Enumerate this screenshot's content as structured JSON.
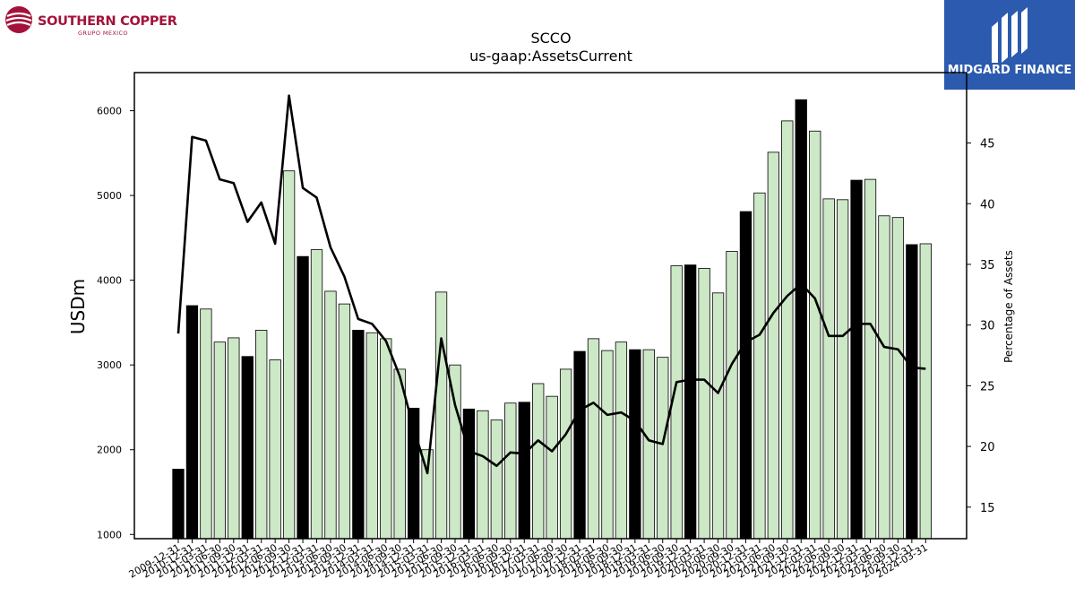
{
  "brand_left": {
    "name": "SOUTHERN COPPER",
    "sub": "GRUPO MEXICO"
  },
  "brand_right": {
    "name": "MIDGARD FINANCE"
  },
  "chart_data": {
    "type": "bar",
    "title": "SCCO",
    "subtitle": "us-gaap:AssetsCurrent",
    "ylabel": "USDm",
    "y2label": "Percentage of Assets",
    "ylim": [
      950,
      6450
    ],
    "y2lim": [
      12.4,
      50.8
    ],
    "yticks": [
      1000,
      2000,
      3000,
      4000,
      5000,
      6000
    ],
    "y2ticks": [
      15,
      20,
      25,
      30,
      35,
      40,
      45
    ],
    "colors": {
      "annual_bar": "#000000",
      "quarter_bar": "#cde8c6",
      "line": "#000000"
    },
    "categories": [
      "2009-12-31",
      "2010-12-31",
      "2011-03-31",
      "2011-06-30",
      "2011-09-30",
      "2011-12-31",
      "2012-03-31",
      "2012-06-30",
      "2012-09-30",
      "2012-12-31",
      "2013-03-31",
      "2013-06-30",
      "2013-09-30",
      "2013-12-31",
      "2014-03-31",
      "2014-06-30",
      "2014-09-30",
      "2014-12-31",
      "2015-03-31",
      "2015-06-30",
      "2015-09-30",
      "2015-12-31",
      "2016-03-31",
      "2016-06-30",
      "2016-09-30",
      "2016-12-31",
      "2017-03-31",
      "2017-06-30",
      "2017-09-30",
      "2017-12-31",
      "2018-03-31",
      "2018-06-30",
      "2018-09-30",
      "2018-12-31",
      "2019-03-31",
      "2019-06-30",
      "2019-09-30",
      "2019-12-31",
      "2020-03-31",
      "2020-06-30",
      "2020-09-30",
      "2020-12-31",
      "2021-03-31",
      "2021-06-30",
      "2021-09-30",
      "2021-12-31",
      "2022-03-31",
      "2022-06-30",
      "2022-09-30",
      "2022-12-31",
      "2023-03-31",
      "2023-06-30",
      "2023-09-30",
      "2023-12-31",
      "2024-03-31"
    ],
    "annual": [
      true,
      true,
      false,
      false,
      false,
      true,
      false,
      false,
      false,
      true,
      false,
      false,
      false,
      true,
      false,
      false,
      false,
      true,
      false,
      false,
      false,
      true,
      false,
      false,
      false,
      true,
      false,
      false,
      false,
      true,
      false,
      false,
      false,
      true,
      false,
      false,
      false,
      true,
      false,
      false,
      false,
      true,
      false,
      false,
      false,
      true,
      false,
      false,
      false,
      true,
      false,
      false,
      false,
      true,
      false
    ],
    "series": [
      {
        "name": "AssetsCurrent (USDm)",
        "axis": "left",
        "values": [
          1770,
          3700,
          3660,
          3270,
          3320,
          3100,
          3410,
          3060,
          5290,
          4280,
          4360,
          3870,
          3720,
          3410,
          3380,
          3310,
          2950,
          2490,
          2000,
          3860,
          3000,
          2480,
          2460,
          2350,
          2550,
          2560,
          2780,
          2630,
          2950,
          3160,
          3310,
          3170,
          3270,
          3180,
          3180,
          3090,
          4170,
          4180,
          4140,
          3850,
          4340,
          4810,
          5030,
          5510,
          5880,
          6130,
          5760,
          4960,
          4950,
          5180,
          5190,
          4760,
          4740,
          4420,
          4430
        ]
      },
      {
        "name": "Percentage of Assets",
        "axis": "right",
        "values": [
          29.3,
          45.5,
          45.2,
          42.0,
          41.7,
          38.5,
          40.1,
          36.7,
          48.9,
          41.3,
          40.5,
          36.4,
          34.0,
          30.5,
          30.1,
          28.7,
          25.8,
          21.5,
          17.8,
          28.9,
          23.4,
          19.6,
          19.2,
          18.4,
          19.5,
          19.4,
          20.5,
          19.6,
          21.0,
          23.0,
          23.6,
          22.6,
          22.8,
          22.1,
          20.5,
          20.2,
          25.3,
          25.5,
          25.5,
          24.4,
          26.8,
          28.6,
          29.2,
          31.0,
          32.4,
          33.4,
          32.2,
          29.1,
          29.1,
          30.1,
          30.1,
          28.2,
          28.0,
          26.5,
          26.4
        ]
      }
    ]
  }
}
